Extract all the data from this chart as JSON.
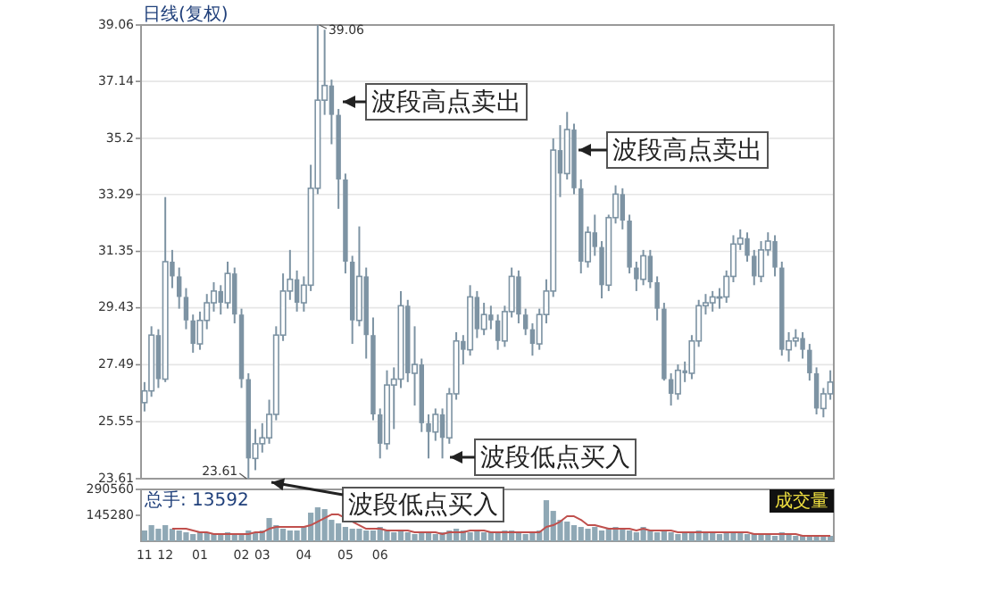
{
  "chart_data": [
    {
      "type": "candlestick",
      "title": "日线(复权)",
      "color": "#7d93a3",
      "ylim": [
        23.61,
        39.06
      ],
      "yticks": [
        23.61,
        25.55,
        27.49,
        29.43,
        31.35,
        33.29,
        35.2,
        37.14,
        39.06
      ],
      "grid": "y",
      "tick_labels": "y",
      "categories": [
        "11",
        null,
        null,
        "12",
        null,
        null,
        null,
        null,
        "01",
        null,
        null,
        null,
        null,
        null,
        "02",
        null,
        null,
        "03",
        null,
        null,
        null,
        null,
        null,
        "04",
        null,
        null,
        null,
        null,
        null,
        "05",
        null,
        null,
        null,
        null,
        "06",
        null,
        null,
        null,
        null,
        null,
        null,
        null,
        null,
        null,
        null,
        null,
        null,
        null,
        null,
        null,
        null,
        null,
        null,
        null,
        null,
        null,
        null,
        null,
        null,
        null,
        null,
        null,
        null,
        null,
        null,
        null,
        null,
        null,
        null,
        null,
        null,
        null,
        null,
        null,
        null,
        null,
        null,
        null,
        null,
        null,
        null,
        null,
        null,
        null,
        null,
        null,
        null,
        null,
        null,
        null,
        null,
        null,
        null,
        null,
        null,
        null,
        null,
        null,
        null,
        null
      ],
      "ohlc": [
        [
          26.2,
          26.9,
          25.9,
          26.6
        ],
        [
          26.6,
          28.8,
          26.4,
          28.5
        ],
        [
          28.5,
          28.7,
          26.7,
          27.0
        ],
        [
          27.0,
          33.2,
          26.9,
          31.0
        ],
        [
          31.0,
          31.4,
          30.1,
          30.5
        ],
        [
          30.5,
          30.8,
          29.4,
          29.8
        ],
        [
          29.8,
          30.1,
          28.7,
          29.0
        ],
        [
          29.0,
          29.2,
          27.9,
          28.2
        ],
        [
          28.2,
          29.3,
          28.0,
          29.0
        ],
        [
          29.0,
          29.9,
          28.7,
          29.6
        ],
        [
          29.6,
          30.3,
          29.3,
          30.0
        ],
        [
          30.0,
          30.2,
          29.2,
          29.6
        ],
        [
          29.6,
          31.0,
          29.4,
          30.6
        ],
        [
          30.6,
          30.8,
          28.9,
          29.2
        ],
        [
          29.2,
          29.4,
          26.7,
          27.0
        ],
        [
          27.0,
          27.2,
          23.61,
          24.3
        ],
        [
          24.3,
          25.3,
          23.9,
          24.8
        ],
        [
          24.8,
          25.5,
          24.5,
          25.0
        ],
        [
          25.0,
          26.3,
          24.8,
          25.8
        ],
        [
          25.8,
          28.8,
          25.6,
          28.5
        ],
        [
          28.5,
          30.6,
          28.3,
          30.0
        ],
        [
          30.0,
          31.4,
          29.7,
          30.4
        ],
        [
          30.4,
          30.7,
          29.3,
          29.6
        ],
        [
          29.6,
          30.5,
          29.3,
          30.2
        ],
        [
          30.2,
          34.3,
          30.0,
          33.5
        ],
        [
          33.5,
          39.06,
          33.3,
          36.5
        ],
        [
          36.5,
          38.9,
          36.0,
          37.0
        ],
        [
          37.0,
          37.2,
          35.0,
          36.0
        ],
        [
          36.0,
          36.2,
          32.8,
          33.8
        ],
        [
          33.8,
          34.0,
          30.6,
          31.0
        ],
        [
          31.0,
          31.2,
          28.2,
          29.0
        ],
        [
          29.0,
          32.2,
          28.8,
          30.5
        ],
        [
          30.5,
          30.8,
          27.7,
          28.5
        ],
        [
          28.5,
          29.1,
          25.6,
          25.8
        ],
        [
          25.8,
          26.0,
          24.3,
          24.8
        ],
        [
          24.8,
          27.3,
          24.6,
          26.8
        ],
        [
          26.8,
          27.4,
          25.3,
          27.0
        ],
        [
          27.0,
          30.0,
          26.7,
          29.5
        ],
        [
          29.5,
          29.7,
          26.9,
          27.2
        ],
        [
          27.2,
          28.8,
          26.1,
          27.5
        ],
        [
          27.5,
          27.7,
          25.2,
          25.5
        ],
        [
          25.5,
          25.8,
          24.3,
          25.2
        ],
        [
          25.2,
          26.0,
          24.9,
          25.8
        ],
        [
          25.8,
          26.0,
          24.3,
          25.0
        ],
        [
          25.0,
          26.7,
          24.8,
          26.5
        ],
        [
          26.5,
          28.6,
          26.3,
          28.3
        ],
        [
          28.3,
          28.5,
          27.5,
          28.0
        ],
        [
          28.0,
          30.2,
          27.8,
          29.8
        ],
        [
          29.8,
          30.0,
          28.4,
          28.7
        ],
        [
          28.7,
          29.6,
          28.5,
          29.2
        ],
        [
          29.2,
          29.5,
          28.7,
          29.0
        ],
        [
          29.0,
          29.2,
          28.0,
          28.3
        ],
        [
          28.3,
          29.5,
          28.1,
          29.3
        ],
        [
          29.3,
          30.8,
          29.1,
          30.5
        ],
        [
          30.5,
          30.7,
          28.9,
          29.2
        ],
        [
          29.2,
          29.4,
          28.5,
          28.7
        ],
        [
          28.7,
          28.9,
          27.8,
          28.2
        ],
        [
          28.2,
          29.4,
          28.0,
          29.2
        ],
        [
          29.2,
          30.4,
          28.9,
          30.0
        ],
        [
          30.0,
          35.2,
          29.8,
          34.8
        ],
        [
          34.8,
          35.65,
          33.2,
          34.0
        ],
        [
          34.0,
          36.1,
          33.8,
          35.5
        ],
        [
          35.5,
          35.7,
          33.3,
          33.5
        ],
        [
          33.5,
          33.8,
          30.6,
          31.0
        ],
        [
          31.0,
          32.2,
          30.8,
          32.0
        ],
        [
          32.0,
          32.6,
          31.2,
          31.5
        ],
        [
          31.5,
          31.7,
          29.75,
          30.2
        ],
        [
          30.2,
          32.6,
          30.0,
          32.5
        ],
        [
          32.5,
          33.6,
          32.3,
          33.3
        ],
        [
          33.3,
          33.5,
          32.1,
          32.4
        ],
        [
          32.4,
          32.6,
          30.6,
          30.8
        ],
        [
          30.8,
          31.0,
          30.0,
          30.4
        ],
        [
          30.4,
          31.4,
          30.2,
          31.2
        ],
        [
          31.2,
          31.4,
          30.1,
          30.3
        ],
        [
          30.3,
          30.5,
          29.0,
          29.4
        ],
        [
          29.4,
          29.6,
          26.95,
          27.0
        ],
        [
          27.0,
          27.2,
          26.1,
          26.5
        ],
        [
          26.5,
          27.5,
          26.3,
          27.3
        ],
        [
          27.3,
          27.6,
          26.9,
          27.2
        ],
        [
          27.2,
          28.5,
          27.0,
          28.3
        ],
        [
          28.3,
          29.7,
          28.1,
          29.5
        ],
        [
          29.5,
          29.9,
          29.2,
          29.6
        ],
        [
          29.6,
          30.0,
          29.3,
          29.8
        ],
        [
          29.8,
          30.1,
          29.4,
          29.8
        ],
        [
          29.8,
          30.7,
          29.6,
          30.5
        ],
        [
          30.5,
          31.9,
          30.3,
          31.6
        ],
        [
          31.6,
          32.1,
          31.4,
          31.8
        ],
        [
          31.8,
          32.0,
          31.0,
          31.2
        ],
        [
          31.2,
          31.4,
          30.2,
          30.5
        ],
        [
          30.5,
          31.7,
          30.3,
          31.4
        ],
        [
          31.4,
          32.0,
          31.2,
          31.7
        ],
        [
          31.7,
          31.9,
          30.5,
          30.8
        ],
        [
          30.8,
          31.0,
          27.8,
          28.0
        ],
        [
          28.0,
          28.6,
          27.6,
          28.3
        ],
        [
          28.3,
          28.7,
          28.1,
          28.4
        ],
        [
          28.4,
          28.6,
          27.7,
          28.0
        ],
        [
          28.0,
          28.2,
          26.95,
          27.2
        ],
        [
          27.2,
          27.4,
          25.8,
          26.0
        ],
        [
          26.0,
          26.7,
          25.7,
          26.5
        ],
        [
          26.5,
          27.3,
          26.3,
          26.9
        ]
      ],
      "annotations": [
        "39.06",
        "23.61",
        "波段高点卖出",
        "波段高点卖出",
        "波段低点买入",
        "波段低点买入"
      ]
    },
    {
      "type": "bar",
      "ylim": [
        0,
        290560
      ],
      "yticks": [
        145280,
        290560
      ],
      "categories": [
        "11",
        null,
        null,
        "12",
        null,
        null,
        null,
        null,
        "01",
        null,
        null,
        null,
        null,
        null,
        "02",
        null,
        null,
        "03",
        null,
        null,
        null,
        null,
        null,
        "04",
        null,
        null,
        null,
        null,
        null,
        "05",
        null,
        null,
        null,
        null,
        "06",
        null,
        null,
        null,
        null,
        null,
        null,
        null,
        null,
        null,
        null,
        null,
        null,
        null,
        null,
        null,
        null,
        null,
        null,
        null,
        null,
        null,
        null,
        null,
        null,
        null,
        null,
        null,
        null,
        null,
        null,
        null,
        null,
        null,
        null,
        null,
        null,
        null,
        null,
        null,
        null,
        null,
        null,
        null,
        null,
        null,
        null,
        null,
        null,
        null,
        null,
        null,
        null,
        null,
        null,
        null,
        null,
        null,
        null,
        null,
        null,
        null,
        null,
        null,
        null,
        null
      ],
      "series": [
        {
          "color": "#8fa8b5",
          "values": [
            60000,
            90000,
            70000,
            90000,
            70000,
            60000,
            50000,
            40000,
            50000,
            50000,
            40000,
            40000,
            50000,
            40000,
            40000,
            60000,
            50000,
            60000,
            130000,
            90000,
            70000,
            60000,
            60000,
            80000,
            160000,
            190000,
            180000,
            120000,
            100000,
            80000,
            70000,
            70000,
            60000,
            60000,
            80000,
            60000,
            50000,
            60000,
            50000,
            40000,
            50000,
            50000,
            40000,
            50000,
            60000,
            70000,
            60000,
            50000,
            60000,
            50000,
            50000,
            50000,
            60000,
            60000,
            50000,
            40000,
            50000,
            60000,
            230000,
            170000,
            120000,
            110000,
            90000,
            80000,
            70000,
            80000,
            60000,
            70000,
            80000,
            70000,
            60000,
            50000,
            80000,
            60000,
            50000,
            60000,
            50000,
            40000,
            50000,
            50000,
            60000,
            50000,
            50000,
            40000,
            50000,
            50000,
            50000,
            40000,
            40000,
            40000,
            40000,
            30000,
            50000,
            40000,
            30000,
            30000,
            30000,
            30000,
            30000,
            30000
          ]
        },
        {
          "type": "line",
          "color": "#c0504d",
          "values": [
            null,
            null,
            null,
            null,
            70000,
            70000,
            70000,
            60000,
            50000,
            50000,
            40000,
            40000,
            40000,
            40000,
            40000,
            40000,
            50000,
            50000,
            70000,
            80000,
            80000,
            80000,
            80000,
            80000,
            90000,
            110000,
            130000,
            150000,
            150000,
            130000,
            110000,
            90000,
            70000,
            70000,
            70000,
            60000,
            60000,
            60000,
            60000,
            50000,
            50000,
            50000,
            50000,
            40000,
            50000,
            50000,
            50000,
            60000,
            60000,
            60000,
            50000,
            50000,
            50000,
            50000,
            50000,
            50000,
            50000,
            50000,
            80000,
            90000,
            110000,
            140000,
            140000,
            120000,
            90000,
            90000,
            80000,
            70000,
            70000,
            70000,
            70000,
            60000,
            70000,
            60000,
            60000,
            60000,
            60000,
            50000,
            50000,
            50000,
            50000,
            50000,
            50000,
            50000,
            50000,
            50000,
            50000,
            50000,
            40000,
            40000,
            40000,
            40000,
            40000,
            40000,
            40000,
            30000,
            30000,
            30000,
            30000,
            30000
          ]
        }
      ],
      "annotations": [
        "总手: 13592",
        "成交量"
      ]
    }
  ]
}
